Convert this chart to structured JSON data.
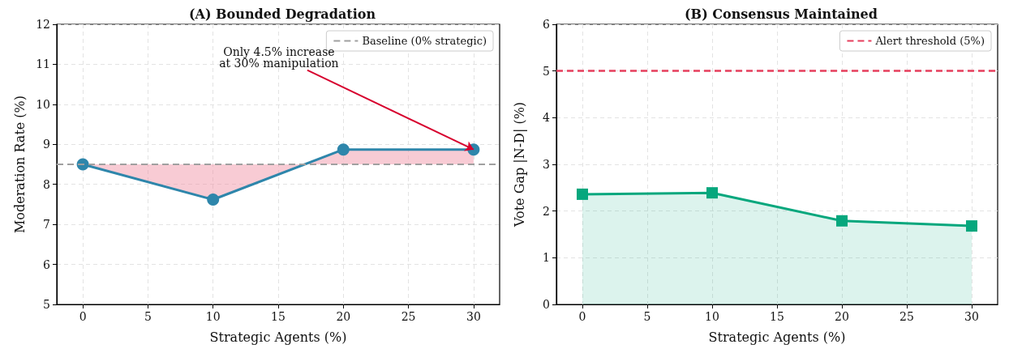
{
  "chart_data": [
    {
      "type": "line",
      "title": "(A) Bounded Degradation",
      "xlabel": "Strategic Agents (%)",
      "ylabel": "Moderation Rate (%)",
      "x": [
        0,
        10,
        20,
        30
      ],
      "series": [
        {
          "color": "#2e86ab",
          "values": [
            8.5,
            7.62,
            8.87,
            8.87
          ],
          "lower": [
            8.5,
            8.5,
            8.5,
            8.5
          ],
          "upper": [
            8.5,
            7.62,
            8.87,
            8.87
          ]
        }
      ],
      "xlim": [
        -2,
        32
      ],
      "xticks": [
        0,
        5,
        10,
        15,
        20,
        25,
        30
      ],
      "ylim": [
        5,
        12
      ],
      "yticks": [
        5,
        6,
        7,
        8,
        9,
        10,
        11,
        12
      ],
      "ref_lines": [
        {
          "axis": "y",
          "value": 8.5,
          "label": "Baseline (0% strategic)",
          "color": "#a0a0a0",
          "line_style": "dashed"
        }
      ],
      "annotations": [
        {
          "text": "Only 4.5% increase\nat 30% manipulation",
          "x": 30,
          "y": 8.87
        }
      ],
      "grid": true,
      "legend": "top right",
      "marker": "circle",
      "line_style": "solid"
    },
    {
      "type": "area",
      "title": "(B) Consensus Maintained",
      "xlabel": "Strategic Agents (%)",
      "ylabel": "Vote Gap |N-D| (%)",
      "x": [
        0,
        10,
        20,
        30
      ],
      "series": [
        {
          "color": "#06a77d",
          "values": [
            2.36,
            2.39,
            1.79,
            1.68
          ]
        }
      ],
      "xlim": [
        -2,
        32
      ],
      "xticks": [
        0,
        5,
        10,
        15,
        20,
        25,
        30
      ],
      "ylim": [
        0,
        6
      ],
      "yticks": [
        0,
        1,
        2,
        3,
        4,
        5,
        6
      ],
      "ref_lines": [
        {
          "axis": "y",
          "value": 5,
          "label": "Alert threshold (5%)",
          "color": "#e63e5c",
          "line_style": "dashed"
        }
      ],
      "grid": true,
      "legend": "top right",
      "marker": "square",
      "line_style": "solid"
    }
  ]
}
